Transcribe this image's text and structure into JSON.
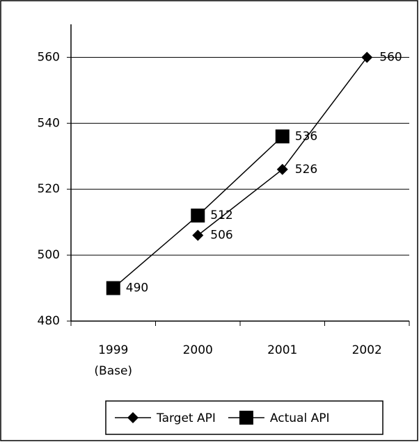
{
  "chart_data": {
    "type": "line",
    "categories": [
      "1999 (Base)",
      "2000",
      "2001",
      "2002"
    ],
    "series": [
      {
        "name": "Target API",
        "color": "#000000",
        "marker": "diamond",
        "values": [
          null,
          506,
          526,
          560
        ]
      },
      {
        "name": "Actual API",
        "color": "#000000",
        "marker": "square",
        "values": [
          490,
          512,
          536,
          null
        ]
      }
    ],
    "ylim": [
      480,
      570
    ],
    "yticks": [
      480,
      500,
      520,
      540,
      560
    ],
    "grid": true,
    "legend": "bottom"
  }
}
